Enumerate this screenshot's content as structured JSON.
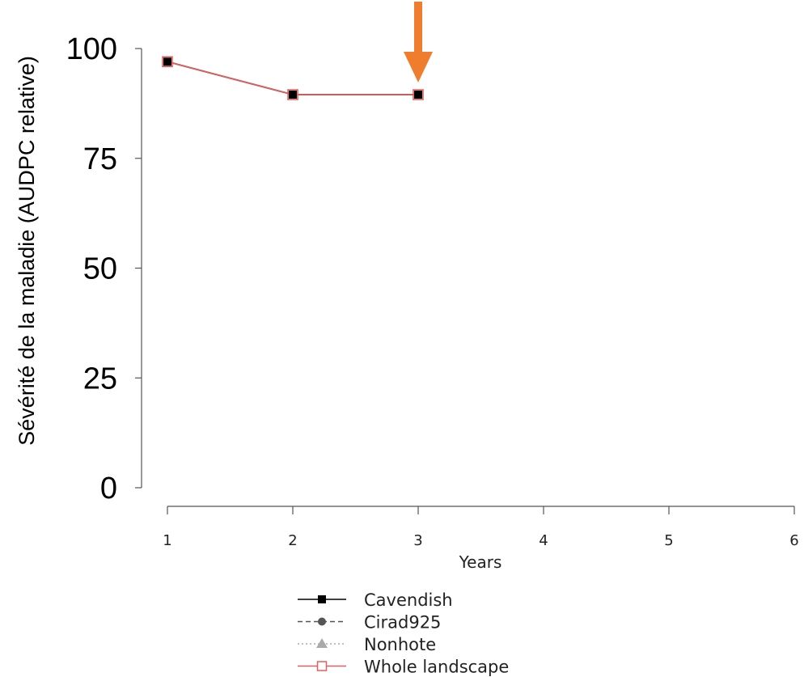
{
  "chart_data": {
    "type": "line",
    "ylabel": "Sévérité de la maladie (AUDPC relative)",
    "xlabel": "Years",
    "x_ticks": [
      "1",
      "2",
      "3",
      "4",
      "5",
      "6"
    ],
    "y_ticks": [
      "0",
      "25",
      "50",
      "75",
      "100"
    ],
    "xlim": [
      1,
      6
    ],
    "ylim": [
      0,
      100
    ],
    "grid": false,
    "legend_position": "bottom-left",
    "series": [
      {
        "name": "Cavendish",
        "x": [
          1,
          2,
          3
        ],
        "y": [
          97,
          89.5,
          89.5
        ],
        "color": "#000000",
        "marker": "square-filled",
        "line": "solid"
      },
      {
        "name": "Cirad925",
        "x": [],
        "y": [],
        "color": "#555555",
        "marker": "circle-filled",
        "line": "dashed"
      },
      {
        "name": "Nonhote",
        "x": [],
        "y": [],
        "color": "#aaaaaa",
        "marker": "triangle-filled",
        "line": "dotted"
      },
      {
        "name": "Whole landscape",
        "x": [
          1,
          2,
          3
        ],
        "y": [
          97,
          89.5,
          89.5
        ],
        "color": "#e06060",
        "marker": "square-open",
        "line": "solid"
      }
    ],
    "annotation": {
      "type": "arrow",
      "x": 3,
      "color": "#ef7d2d"
    }
  }
}
